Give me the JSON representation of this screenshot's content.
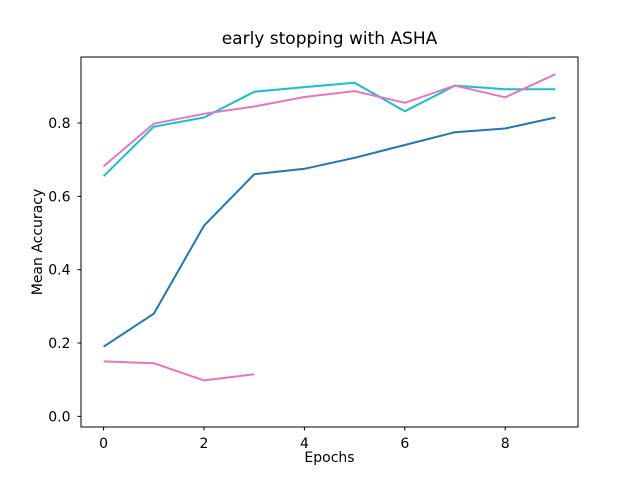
{
  "figure": {
    "background": "#ffffff",
    "text_color": "#000000"
  },
  "chart_data": {
    "type": "line",
    "title": "early stopping with ASHA",
    "xlabel": "Epochs",
    "ylabel": "Mean Accuracy",
    "xlim": [
      -0.45,
      9.45
    ],
    "ylim": [
      -0.029,
      0.98
    ],
    "grid": false,
    "legend": "none",
    "xticks": {
      "values": [
        0,
        2,
        4,
        6,
        8
      ],
      "labels": [
        "0",
        "2",
        "4",
        "6",
        "8"
      ]
    },
    "yticks": {
      "values": [
        0.0,
        0.2,
        0.4,
        0.6,
        0.8
      ],
      "labels": [
        "0.0",
        "0.2",
        "0.4",
        "0.6",
        "0.8"
      ]
    },
    "series": [
      {
        "name": "trial-blue",
        "color": "#1f77b4",
        "x": [
          0,
          1,
          2,
          3,
          4,
          5,
          6,
          7,
          8,
          9
        ],
        "y": [
          0.19,
          0.28,
          0.52,
          0.66,
          0.675,
          0.705,
          0.74,
          0.775,
          0.785,
          0.815
        ]
      },
      {
        "name": "trial-cyan",
        "color": "#17becf",
        "x": [
          0,
          1,
          2,
          3,
          4,
          5,
          6,
          7,
          8,
          9
        ],
        "y": [
          0.655,
          0.79,
          0.815,
          0.885,
          0.898,
          0.91,
          0.832,
          0.902,
          0.892,
          0.892
        ]
      },
      {
        "name": "trial-pink",
        "color": "#e377c2",
        "x": [
          0,
          1,
          2,
          3,
          4,
          5,
          6,
          7,
          8,
          9
        ],
        "y": [
          0.682,
          0.798,
          0.825,
          0.845,
          0.871,
          0.887,
          0.855,
          0.902,
          0.87,
          0.933
        ]
      },
      {
        "name": "trial-pink-early-stopped",
        "color": "#e377c2",
        "x": [
          0,
          1,
          2,
          3
        ],
        "y": [
          0.15,
          0.145,
          0.098,
          0.115
        ]
      }
    ]
  }
}
